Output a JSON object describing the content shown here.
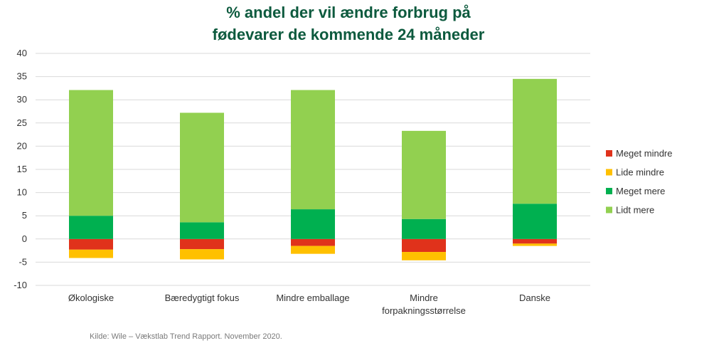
{
  "chart_data": {
    "type": "bar",
    "stacked": true,
    "title_lines": [
      "% andel der vil ændre forbrug på",
      "fødevarer de kommende 24 måneder"
    ],
    "categories": [
      [
        "Økologiske"
      ],
      [
        "Bæredygtigt fokus"
      ],
      [
        "Mindre emballage"
      ],
      [
        "Mindre",
        "forpakningsstørrelse"
      ],
      [
        "Danske"
      ]
    ],
    "series": [
      {
        "name": "Meget mindre",
        "color": "#e0321b",
        "values": [
          -2.3,
          -2.2,
          -1.5,
          -2.8,
          -1.0
        ]
      },
      {
        "name": "Lide mindre",
        "color": "#ffc000",
        "values": [
          -1.8,
          -2.2,
          -1.7,
          -1.8,
          -0.5
        ]
      },
      {
        "name": "Meget mere",
        "color": "#00b050",
        "values": [
          5.0,
          3.6,
          6.4,
          4.3,
          7.6
        ]
      },
      {
        "name": "Lidt mere",
        "color": "#92d050",
        "values": [
          27.1,
          23.6,
          25.7,
          19.0,
          26.9
        ]
      }
    ],
    "ylim": [
      -10,
      40
    ],
    "yticks": [
      -10,
      -5,
      0,
      5,
      10,
      15,
      20,
      25,
      30,
      35,
      40
    ],
    "grid": true,
    "legend": "right",
    "xlabel": "",
    "ylabel": ""
  },
  "source": "Kilde: Wile – Vækstlab Trend Rapport. November 2020."
}
